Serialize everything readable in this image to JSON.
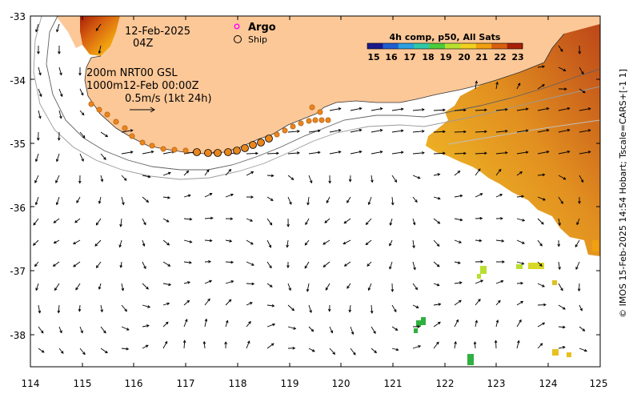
{
  "header": {
    "date": "12-Feb-2025",
    "time": "04Z",
    "depth_line_1": "200m  NRT00 GSL",
    "depth_line_2": "1000m12-Feb 00:00Z",
    "scale_label": "0.5m/s (1kt 24h)"
  },
  "legend": {
    "argo_label": "Argo",
    "ship_label": "Ship",
    "argo_color": "#ff00ff"
  },
  "colorbar": {
    "title": "4h comp, p50, All Sats",
    "ticks": [
      "15",
      "16",
      "17",
      "18",
      "19",
      "20",
      "21",
      "22",
      "23"
    ],
    "colors": [
      "#1a1a8a",
      "#1f5fd0",
      "#2aa0e0",
      "#30c8a8",
      "#4ccc3a",
      "#b8e030",
      "#f0d020",
      "#f0a010",
      "#d86010",
      "#a82008"
    ]
  },
  "axes": {
    "x_ticks": [
      "114",
      "115",
      "116",
      "117",
      "118",
      "119",
      "120",
      "121",
      "122",
      "123",
      "124",
      "125"
    ],
    "y_ticks": [
      "-33",
      "-34",
      "-35",
      "-36",
      "-37",
      "-38"
    ],
    "xlim": [
      114,
      125
    ],
    "ylim": [
      -38.5,
      -33
    ]
  },
  "credit": "© IMOS 15-Feb-2025 14:54 Hobart; Tscale=CARS+[-1 1]",
  "colors": {
    "land": "#fdc898",
    "background": "#ffffff",
    "drifter": "#e8851c"
  }
}
